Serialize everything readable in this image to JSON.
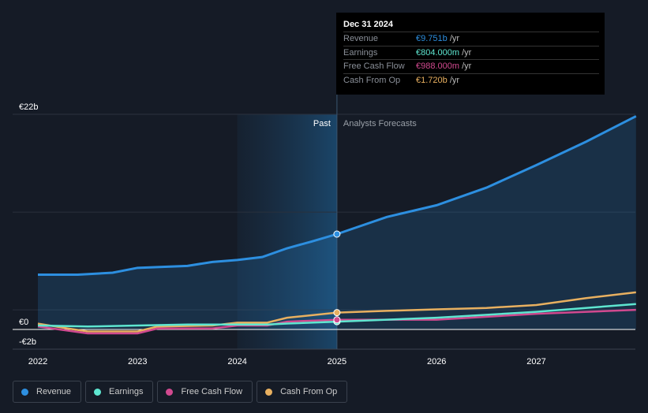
{
  "tooltip": {
    "date": "Dec 31 2024",
    "rows": [
      {
        "label": "Revenue",
        "value": "€9.751b",
        "unit": "/yr",
        "color": "#2d8fe0"
      },
      {
        "label": "Earnings",
        "value": "€804.000m",
        "unit": "/yr",
        "color": "#5ee6d0"
      },
      {
        "label": "Free Cash Flow",
        "value": "€988.000m",
        "unit": "/yr",
        "color": "#d1498f"
      },
      {
        "label": "Cash From Op",
        "value": "€1.720b",
        "unit": "/yr",
        "color": "#e8b060"
      }
    ]
  },
  "chart_data": {
    "type": "line",
    "ylim": [
      -2,
      22
    ],
    "y_tick_labels": [
      "€22b",
      "€0",
      "-€2b"
    ],
    "x_tick_labels": [
      "2022",
      "2023",
      "2024",
      "2025",
      "2026",
      "2027"
    ],
    "past_label": "Past",
    "forecast_label": "Analysts Forecasts",
    "series": [
      {
        "name": "Revenue",
        "color": "#2d8fe0",
        "points": [
          [
            2022,
            5.6
          ],
          [
            2022.4,
            5.6
          ],
          [
            2022.75,
            5.8
          ],
          [
            2023,
            6.3
          ],
          [
            2023.5,
            6.5
          ],
          [
            2023.75,
            6.9
          ],
          [
            2024,
            7.1
          ],
          [
            2024.25,
            7.4
          ],
          [
            2024.5,
            8.3
          ],
          [
            2024.75,
            9.0
          ],
          [
            2025,
            9.75
          ],
          [
            2025.5,
            11.5
          ],
          [
            2026,
            12.7
          ],
          [
            2026.5,
            14.5
          ],
          [
            2027,
            16.8
          ],
          [
            2027.5,
            19.2
          ],
          [
            2028,
            21.8
          ]
        ]
      },
      {
        "name": "Earnings",
        "color": "#5ee6d0",
        "points": [
          [
            2022,
            0.4
          ],
          [
            2022.5,
            0.3
          ],
          [
            2023,
            0.4
          ],
          [
            2023.5,
            0.5
          ],
          [
            2024,
            0.5
          ],
          [
            2024.3,
            0.5
          ],
          [
            2024.5,
            0.6
          ],
          [
            2025,
            0.8
          ],
          [
            2026,
            1.2
          ],
          [
            2027,
            1.8
          ],
          [
            2028,
            2.6
          ]
        ]
      },
      {
        "name": "Free Cash Flow",
        "color": "#d1498f",
        "points": [
          [
            2022,
            0.3
          ],
          [
            2022.5,
            -0.4
          ],
          [
            2023,
            -0.4
          ],
          [
            2023.2,
            0.1
          ],
          [
            2023.75,
            0.1
          ],
          [
            2024,
            0.4
          ],
          [
            2024.3,
            0.4
          ],
          [
            2024.5,
            0.8
          ],
          [
            2025,
            0.99
          ],
          [
            2026,
            1.0
          ],
          [
            2027,
            1.6
          ],
          [
            2028,
            2.0
          ]
        ]
      },
      {
        "name": "Cash From Op",
        "color": "#e8b060",
        "points": [
          [
            2022,
            0.6
          ],
          [
            2022.3,
            0.1
          ],
          [
            2022.5,
            -0.2
          ],
          [
            2023,
            -0.2
          ],
          [
            2023.2,
            0.3
          ],
          [
            2023.75,
            0.4
          ],
          [
            2024,
            0.7
          ],
          [
            2024.3,
            0.7
          ],
          [
            2024.5,
            1.2
          ],
          [
            2025,
            1.72
          ],
          [
            2025.5,
            1.9
          ],
          [
            2026,
            2.05
          ],
          [
            2026.5,
            2.2
          ],
          [
            2027,
            2.5
          ],
          [
            2027.5,
            3.2
          ],
          [
            2028,
            3.8
          ]
        ]
      }
    ]
  }
}
